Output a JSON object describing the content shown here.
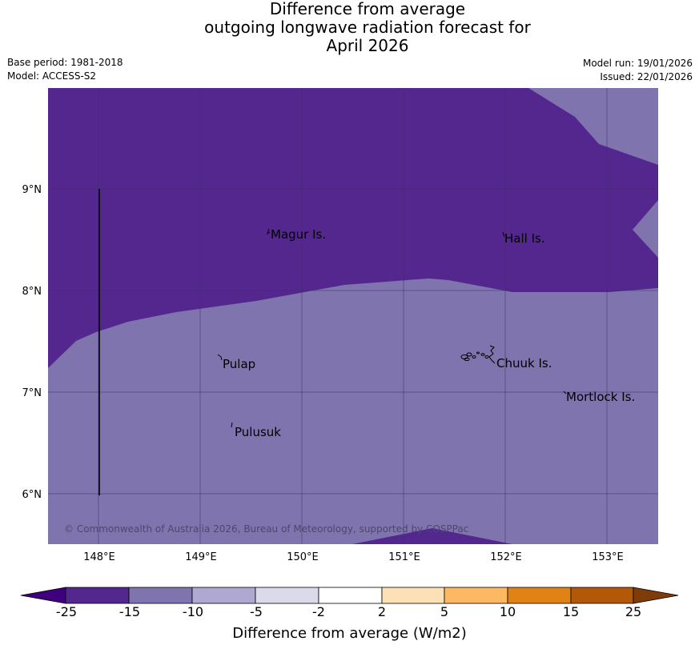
{
  "title": {
    "line1": "Difference from average",
    "line2": "outgoing longwave radiation forecast for",
    "line3": "April 2026"
  },
  "meta": {
    "base_period": "Base period: 1981-2018",
    "model": "Model: ACCESS-S2",
    "model_run": "Model run: 19/01/2026",
    "issued": "Issued: 22/01/2026"
  },
  "map": {
    "lon_labels": [
      "148°E",
      "149°E",
      "150°E",
      "151°E",
      "152°E",
      "153°E"
    ],
    "lat_labels": [
      "9°N",
      "8°N",
      "7°N",
      "6°N"
    ],
    "places": [
      {
        "name": "Magur Is."
      },
      {
        "name": "Hall Is."
      },
      {
        "name": "Pulap"
      },
      {
        "name": "Chuuk Is."
      },
      {
        "name": "Mortlock Is."
      },
      {
        "name": "Pulusuk"
      }
    ],
    "copyright": "© Commonwealth of Australia 2026, Bureau of Meteorology, supported by COSPPac",
    "colors": {
      "dark_purple": "#54278f",
      "mid_purple": "#7f74ad",
      "grid": "#3d2a66"
    }
  },
  "colorbar": {
    "ticks": [
      "-25",
      "-15",
      "-10",
      "-5",
      "-2",
      "2",
      "5",
      "10",
      "15",
      "25"
    ],
    "colors": [
      "#3f007d",
      "#54278f",
      "#7f74ad",
      "#aea8d2",
      "#dadaeb",
      "#ffffff",
      "#fee0b6",
      "#fdb863",
      "#e08214",
      "#b35806",
      "#7f3b08"
    ],
    "label": "Difference from average (W/m2)"
  }
}
